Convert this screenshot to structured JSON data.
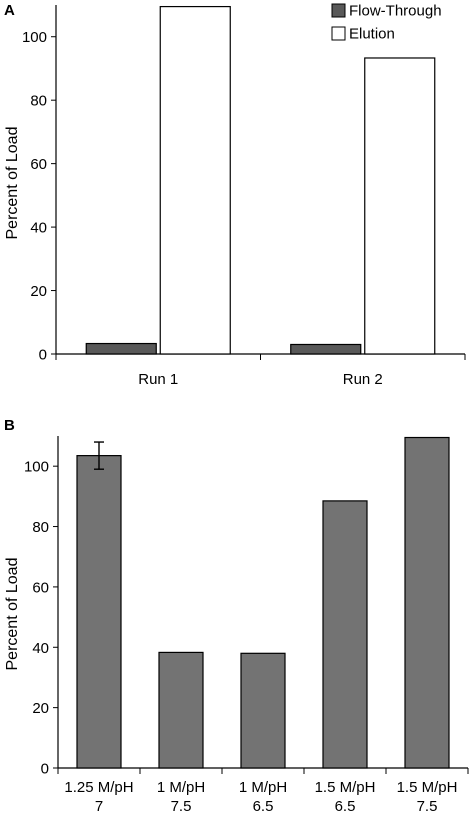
{
  "chart_data": [
    {
      "type": "bar",
      "panel_label": "A",
      "categories": [
        "Run 1",
        "Run 2"
      ],
      "series": [
        {
          "name": "Flow-Through",
          "values": [
            3.3,
            3.0
          ],
          "color": "#595959"
        },
        {
          "name": "Elution",
          "values": [
            109.5,
            93.3
          ],
          "color": "#ffffff"
        }
      ],
      "ylabel": "Percent of Load",
      "ylim": [
        0,
        110
      ],
      "yticks": [
        "0",
        "20",
        "40",
        "60",
        "80",
        "100"
      ],
      "legend_position": "top-right",
      "grid": false
    },
    {
      "type": "bar",
      "panel_label": "B",
      "categories": [
        [
          "1.25 M/pH",
          "7"
        ],
        [
          "1 M/pH",
          "7.5"
        ],
        [
          "1 M/pH",
          "6.5"
        ],
        [
          "1.5 M/pH",
          "6.5"
        ],
        [
          "1.5 M/pH",
          "7.5"
        ]
      ],
      "values": [
        103.5,
        38.3,
        38.0,
        88.5,
        109.5
      ],
      "error": [
        4.5,
        null,
        null,
        null,
        null
      ],
      "color": "#737373",
      "ylabel": "Percent of Load",
      "ylim": [
        0,
        110
      ],
      "yticks": [
        "0",
        "20",
        "40",
        "60",
        "80",
        "100"
      ],
      "grid": false
    }
  ]
}
